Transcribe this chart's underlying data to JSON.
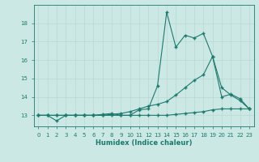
{
  "title": "",
  "xlabel": "Humidex (Indice chaleur)",
  "ylabel": "",
  "bg_color": "#cce8e4",
  "grid_color": "#b8d8d4",
  "line_color": "#1a7a6e",
  "xlim": [
    -0.5,
    23.5
  ],
  "ylim": [
    12.4,
    19.0
  ],
  "yticks": [
    13,
    14,
    15,
    16,
    17,
    18
  ],
  "xticks": [
    0,
    1,
    2,
    3,
    4,
    5,
    6,
    7,
    8,
    9,
    10,
    11,
    12,
    13,
    14,
    15,
    16,
    17,
    18,
    19,
    20,
    21,
    22,
    23
  ],
  "line1_x": [
    0,
    1,
    2,
    3,
    4,
    5,
    6,
    7,
    8,
    9,
    10,
    11,
    12,
    13,
    14,
    15,
    16,
    17,
    18,
    19,
    20,
    21,
    22,
    23
  ],
  "line1_y": [
    13.0,
    13.0,
    12.7,
    13.0,
    13.0,
    13.0,
    13.0,
    13.05,
    13.1,
    13.0,
    13.0,
    13.3,
    13.35,
    14.6,
    18.6,
    16.7,
    17.35,
    17.2,
    17.45,
    16.2,
    14.0,
    14.15,
    13.9,
    13.35
  ],
  "line2_x": [
    0,
    1,
    2,
    3,
    4,
    5,
    6,
    7,
    8,
    9,
    10,
    11,
    12,
    13,
    14,
    15,
    16,
    17,
    18,
    19,
    20,
    21,
    22,
    23
  ],
  "line2_y": [
    13.0,
    13.0,
    13.0,
    13.0,
    13.0,
    13.0,
    13.0,
    13.0,
    13.05,
    13.1,
    13.2,
    13.35,
    13.5,
    13.6,
    13.75,
    14.1,
    14.5,
    14.9,
    15.2,
    16.2,
    14.5,
    14.1,
    13.8,
    13.35
  ],
  "line3_x": [
    0,
    1,
    2,
    3,
    4,
    5,
    6,
    7,
    8,
    9,
    10,
    11,
    12,
    13,
    14,
    15,
    16,
    17,
    18,
    19,
    20,
    21,
    22,
    23
  ],
  "line3_y": [
    13.0,
    13.0,
    13.0,
    13.0,
    13.0,
    13.0,
    13.0,
    13.0,
    13.0,
    13.0,
    13.0,
    13.0,
    13.0,
    13.0,
    13.0,
    13.05,
    13.1,
    13.15,
    13.2,
    13.3,
    13.35,
    13.35,
    13.35,
    13.35
  ],
  "marker": "+",
  "markersize": 3,
  "linewidth": 0.8
}
